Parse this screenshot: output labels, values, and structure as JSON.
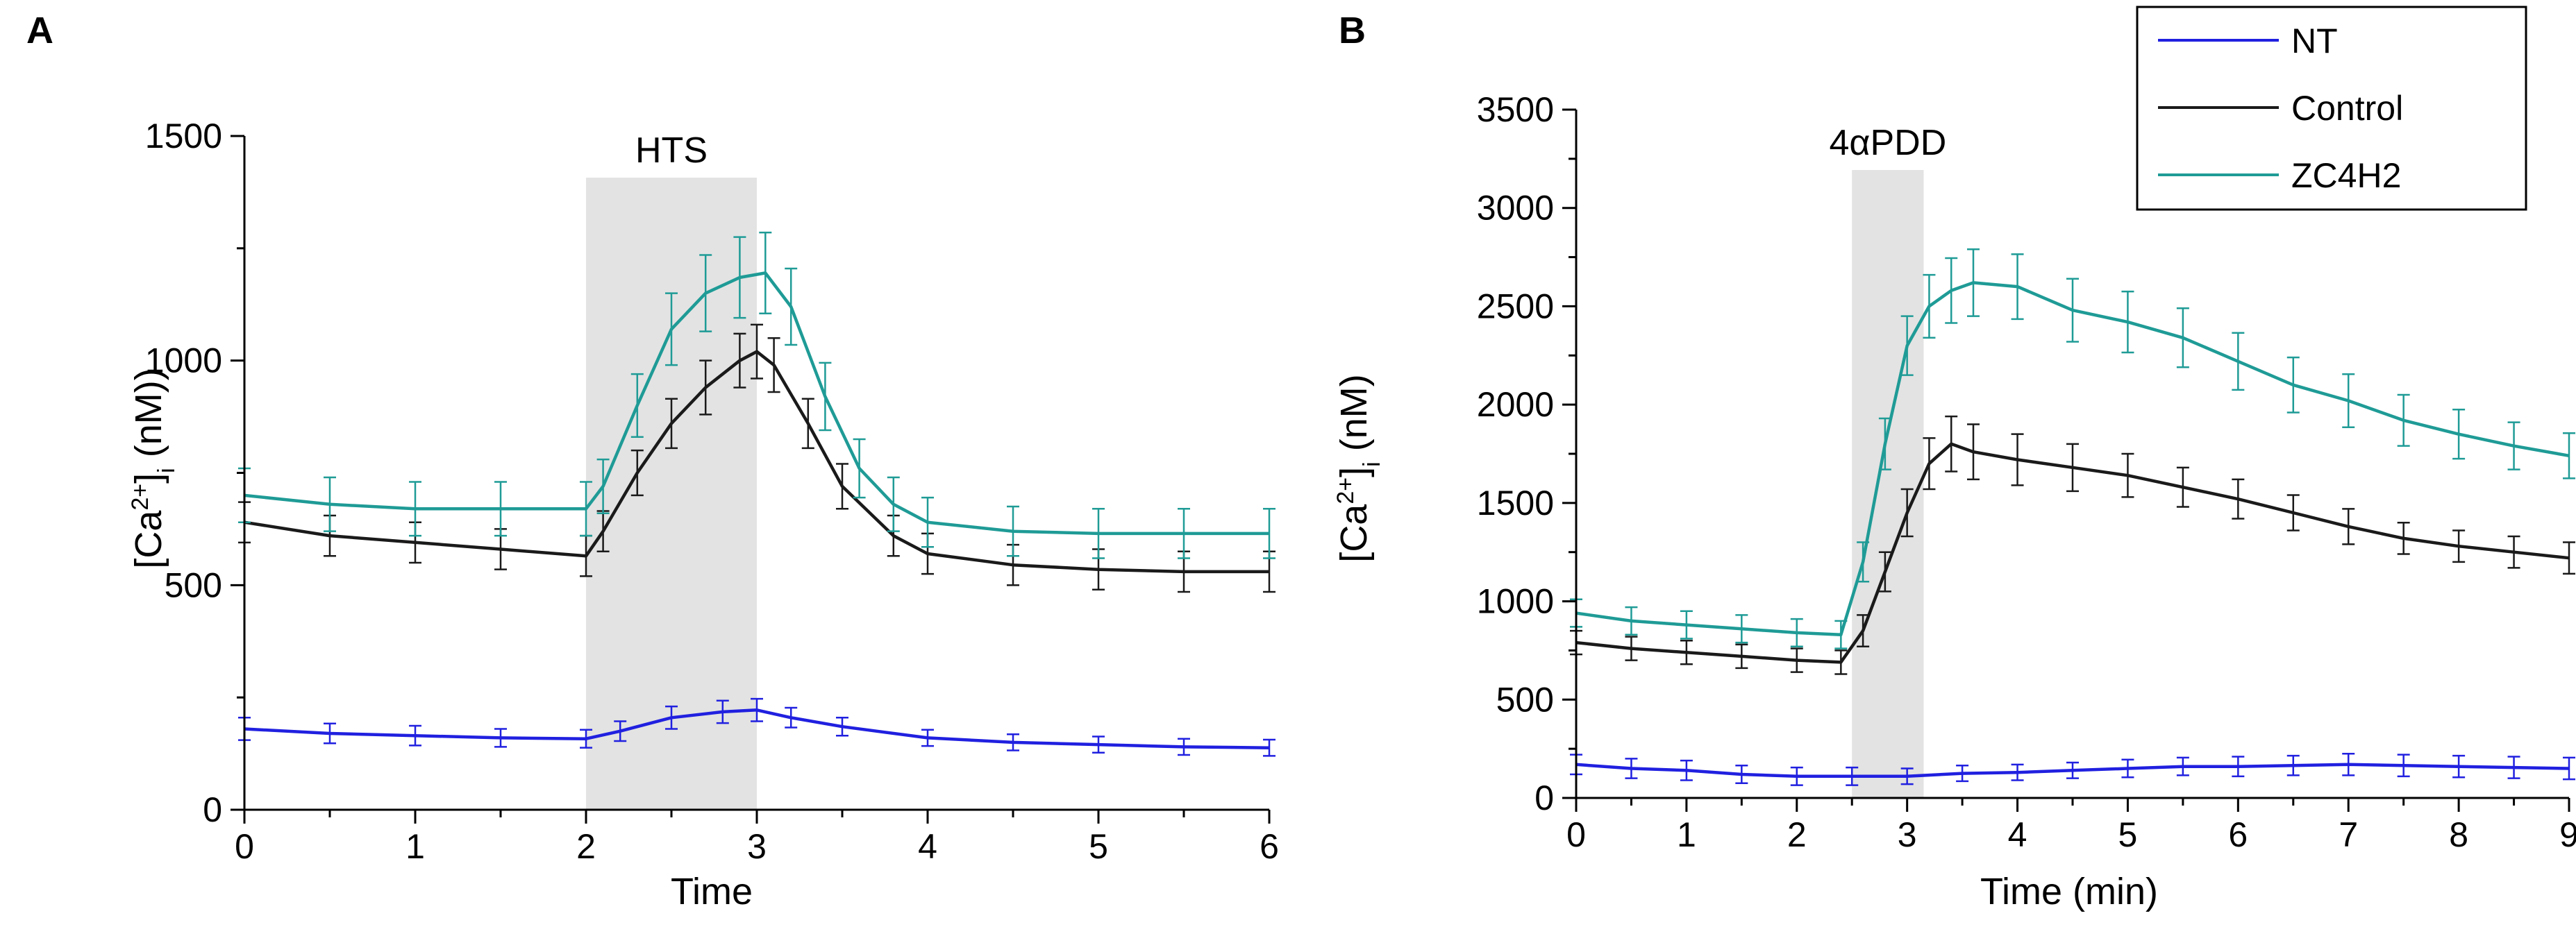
{
  "legend": {
    "entries": [
      {
        "name": "NT",
        "color": "#2020e0"
      },
      {
        "name": "Control",
        "color": "#1a1a1a"
      },
      {
        "name": "ZC4H2",
        "color": "#1f9b96"
      }
    ]
  },
  "chart_data": [
    {
      "type": "line",
      "panel_label": "A",
      "title": "",
      "xlabel": "Time",
      "ylabel_main": "[Ca",
      "ylabel_sup": "2+",
      "ylabel_close": "]",
      "ylabel_sub": "i",
      "ylabel_unit": " (nM))",
      "xlim": [
        0,
        6
      ],
      "ylim": [
        0,
        1500
      ],
      "xticks": [
        0,
        1,
        2,
        3,
        4,
        5,
        6
      ],
      "xtick_labels": [
        "0",
        "1",
        "2",
        "3",
        "4",
        "5",
        "6"
      ],
      "yticks": [
        0,
        500,
        1000,
        1500
      ],
      "ytick_labels": [
        "0",
        "500",
        "1000",
        "1500"
      ],
      "stimulus": {
        "label": "HTS",
        "start": 2.0,
        "end": 3.0
      },
      "series": [
        {
          "name": "NT",
          "color": "#2020e0",
          "x": [
            0,
            0.5,
            1.0,
            1.5,
            2.0,
            2.2,
            2.5,
            2.8,
            3.0,
            3.2,
            3.5,
            4.0,
            4.5,
            5.0,
            5.5,
            6.0
          ],
          "y": [
            180,
            170,
            165,
            160,
            158,
            175,
            205,
            218,
            222,
            205,
            185,
            160,
            150,
            145,
            140,
            138
          ],
          "err": [
            25,
            22,
            22,
            20,
            20,
            22,
            25,
            25,
            25,
            22,
            20,
            18,
            18,
            18,
            18,
            18
          ]
        },
        {
          "name": "Control",
          "color": "#1a1a1a",
          "x": [
            0,
            0.5,
            1.0,
            1.5,
            2.0,
            2.1,
            2.3,
            2.5,
            2.7,
            2.9,
            3.0,
            3.1,
            3.3,
            3.5,
            3.8,
            4.0,
            4.5,
            5.0,
            5.5,
            6.0
          ],
          "y": [
            640,
            610,
            595,
            580,
            565,
            620,
            750,
            860,
            940,
            1000,
            1020,
            990,
            860,
            720,
            610,
            570,
            545,
            535,
            530,
            530
          ],
          "err": [
            45,
            45,
            45,
            45,
            45,
            45,
            50,
            55,
            60,
            60,
            60,
            60,
            55,
            50,
            45,
            45,
            45,
            45,
            45,
            45
          ]
        },
        {
          "name": "ZC4H2",
          "color": "#1f9b96",
          "x": [
            0,
            0.5,
            1.0,
            1.5,
            2.0,
            2.1,
            2.3,
            2.5,
            2.7,
            2.9,
            3.05,
            3.2,
            3.4,
            3.6,
            3.8,
            4.0,
            4.5,
            5.0,
            5.5,
            6.0
          ],
          "y": [
            700,
            680,
            670,
            670,
            670,
            720,
            900,
            1070,
            1150,
            1185,
            1195,
            1120,
            920,
            760,
            680,
            640,
            620,
            615,
            615,
            615
          ],
          "err": [
            60,
            60,
            60,
            60,
            60,
            60,
            70,
            80,
            85,
            90,
            90,
            85,
            75,
            65,
            60,
            55,
            55,
            55,
            55,
            55
          ]
        }
      ]
    },
    {
      "type": "line",
      "panel_label": "B",
      "title": "",
      "xlabel": "Time (min)",
      "ylabel_main": "[Ca",
      "ylabel_sup": "2+",
      "ylabel_close": "]",
      "ylabel_sub": "i",
      "ylabel_unit": " (nM)",
      "xlim": [
        0,
        9
      ],
      "ylim": [
        0,
        3500
      ],
      "xticks": [
        0,
        1,
        2,
        3,
        4,
        5,
        6,
        7,
        8,
        9
      ],
      "xtick_labels": [
        "0",
        "1",
        "2",
        "3",
        "4",
        "5",
        "6",
        "7",
        "8",
        "9"
      ],
      "yticks": [
        0,
        500,
        1000,
        1500,
        2000,
        2500,
        3000,
        3500
      ],
      "ytick_labels": [
        "0",
        "500",
        "1000",
        "1500",
        "2000",
        "2500",
        "3000",
        "3500"
      ],
      "stimulus": {
        "label": "4αPDD",
        "start": 2.5,
        "end": 3.15
      },
      "series": [
        {
          "name": "NT",
          "color": "#2020e0",
          "x": [
            0,
            0.5,
            1.0,
            1.5,
            2.0,
            2.5,
            3.0,
            3.5,
            4.0,
            4.5,
            5.0,
            5.5,
            6.0,
            6.5,
            7.0,
            7.5,
            8.0,
            8.5,
            9.0
          ],
          "y": [
            170,
            150,
            140,
            120,
            110,
            110,
            110,
            125,
            130,
            140,
            150,
            160,
            160,
            165,
            170,
            165,
            160,
            155,
            150
          ],
          "err": [
            50,
            50,
            50,
            45,
            45,
            45,
            40,
            40,
            40,
            40,
            45,
            45,
            50,
            50,
            55,
            55,
            55,
            55,
            55
          ]
        },
        {
          "name": "Control",
          "color": "#1a1a1a",
          "x": [
            0,
            0.5,
            1.0,
            1.5,
            2.0,
            2.4,
            2.6,
            2.8,
            3.0,
            3.2,
            3.4,
            3.6,
            4.0,
            4.5,
            5.0,
            5.5,
            6.0,
            6.5,
            7.0,
            7.5,
            8.0,
            8.5,
            9.0
          ],
          "y": [
            790,
            760,
            740,
            720,
            700,
            690,
            850,
            1150,
            1450,
            1700,
            1800,
            1760,
            1720,
            1680,
            1640,
            1580,
            1520,
            1450,
            1380,
            1320,
            1280,
            1250,
            1220
          ],
          "err": [
            60,
            60,
            60,
            60,
            60,
            60,
            80,
            100,
            120,
            130,
            140,
            140,
            130,
            120,
            110,
            100,
            100,
            90,
            90,
            80,
            80,
            80,
            80
          ]
        },
        {
          "name": "ZC4H2",
          "color": "#1f9b96",
          "x": [
            0,
            0.5,
            1.0,
            1.5,
            2.0,
            2.4,
            2.6,
            2.8,
            3.0,
            3.2,
            3.4,
            3.6,
            4.0,
            4.5,
            5.0,
            5.5,
            6.0,
            6.5,
            7.0,
            7.5,
            8.0,
            8.5,
            9.0
          ],
          "y": [
            940,
            900,
            880,
            860,
            840,
            830,
            1200,
            1800,
            2300,
            2500,
            2580,
            2620,
            2600,
            2480,
            2420,
            2340,
            2220,
            2100,
            2020,
            1920,
            1850,
            1790,
            1740
          ],
          "err": [
            70,
            70,
            70,
            70,
            70,
            70,
            100,
            130,
            150,
            160,
            165,
            170,
            165,
            160,
            155,
            150,
            145,
            140,
            135,
            130,
            125,
            120,
            115
          ]
        }
      ]
    }
  ]
}
